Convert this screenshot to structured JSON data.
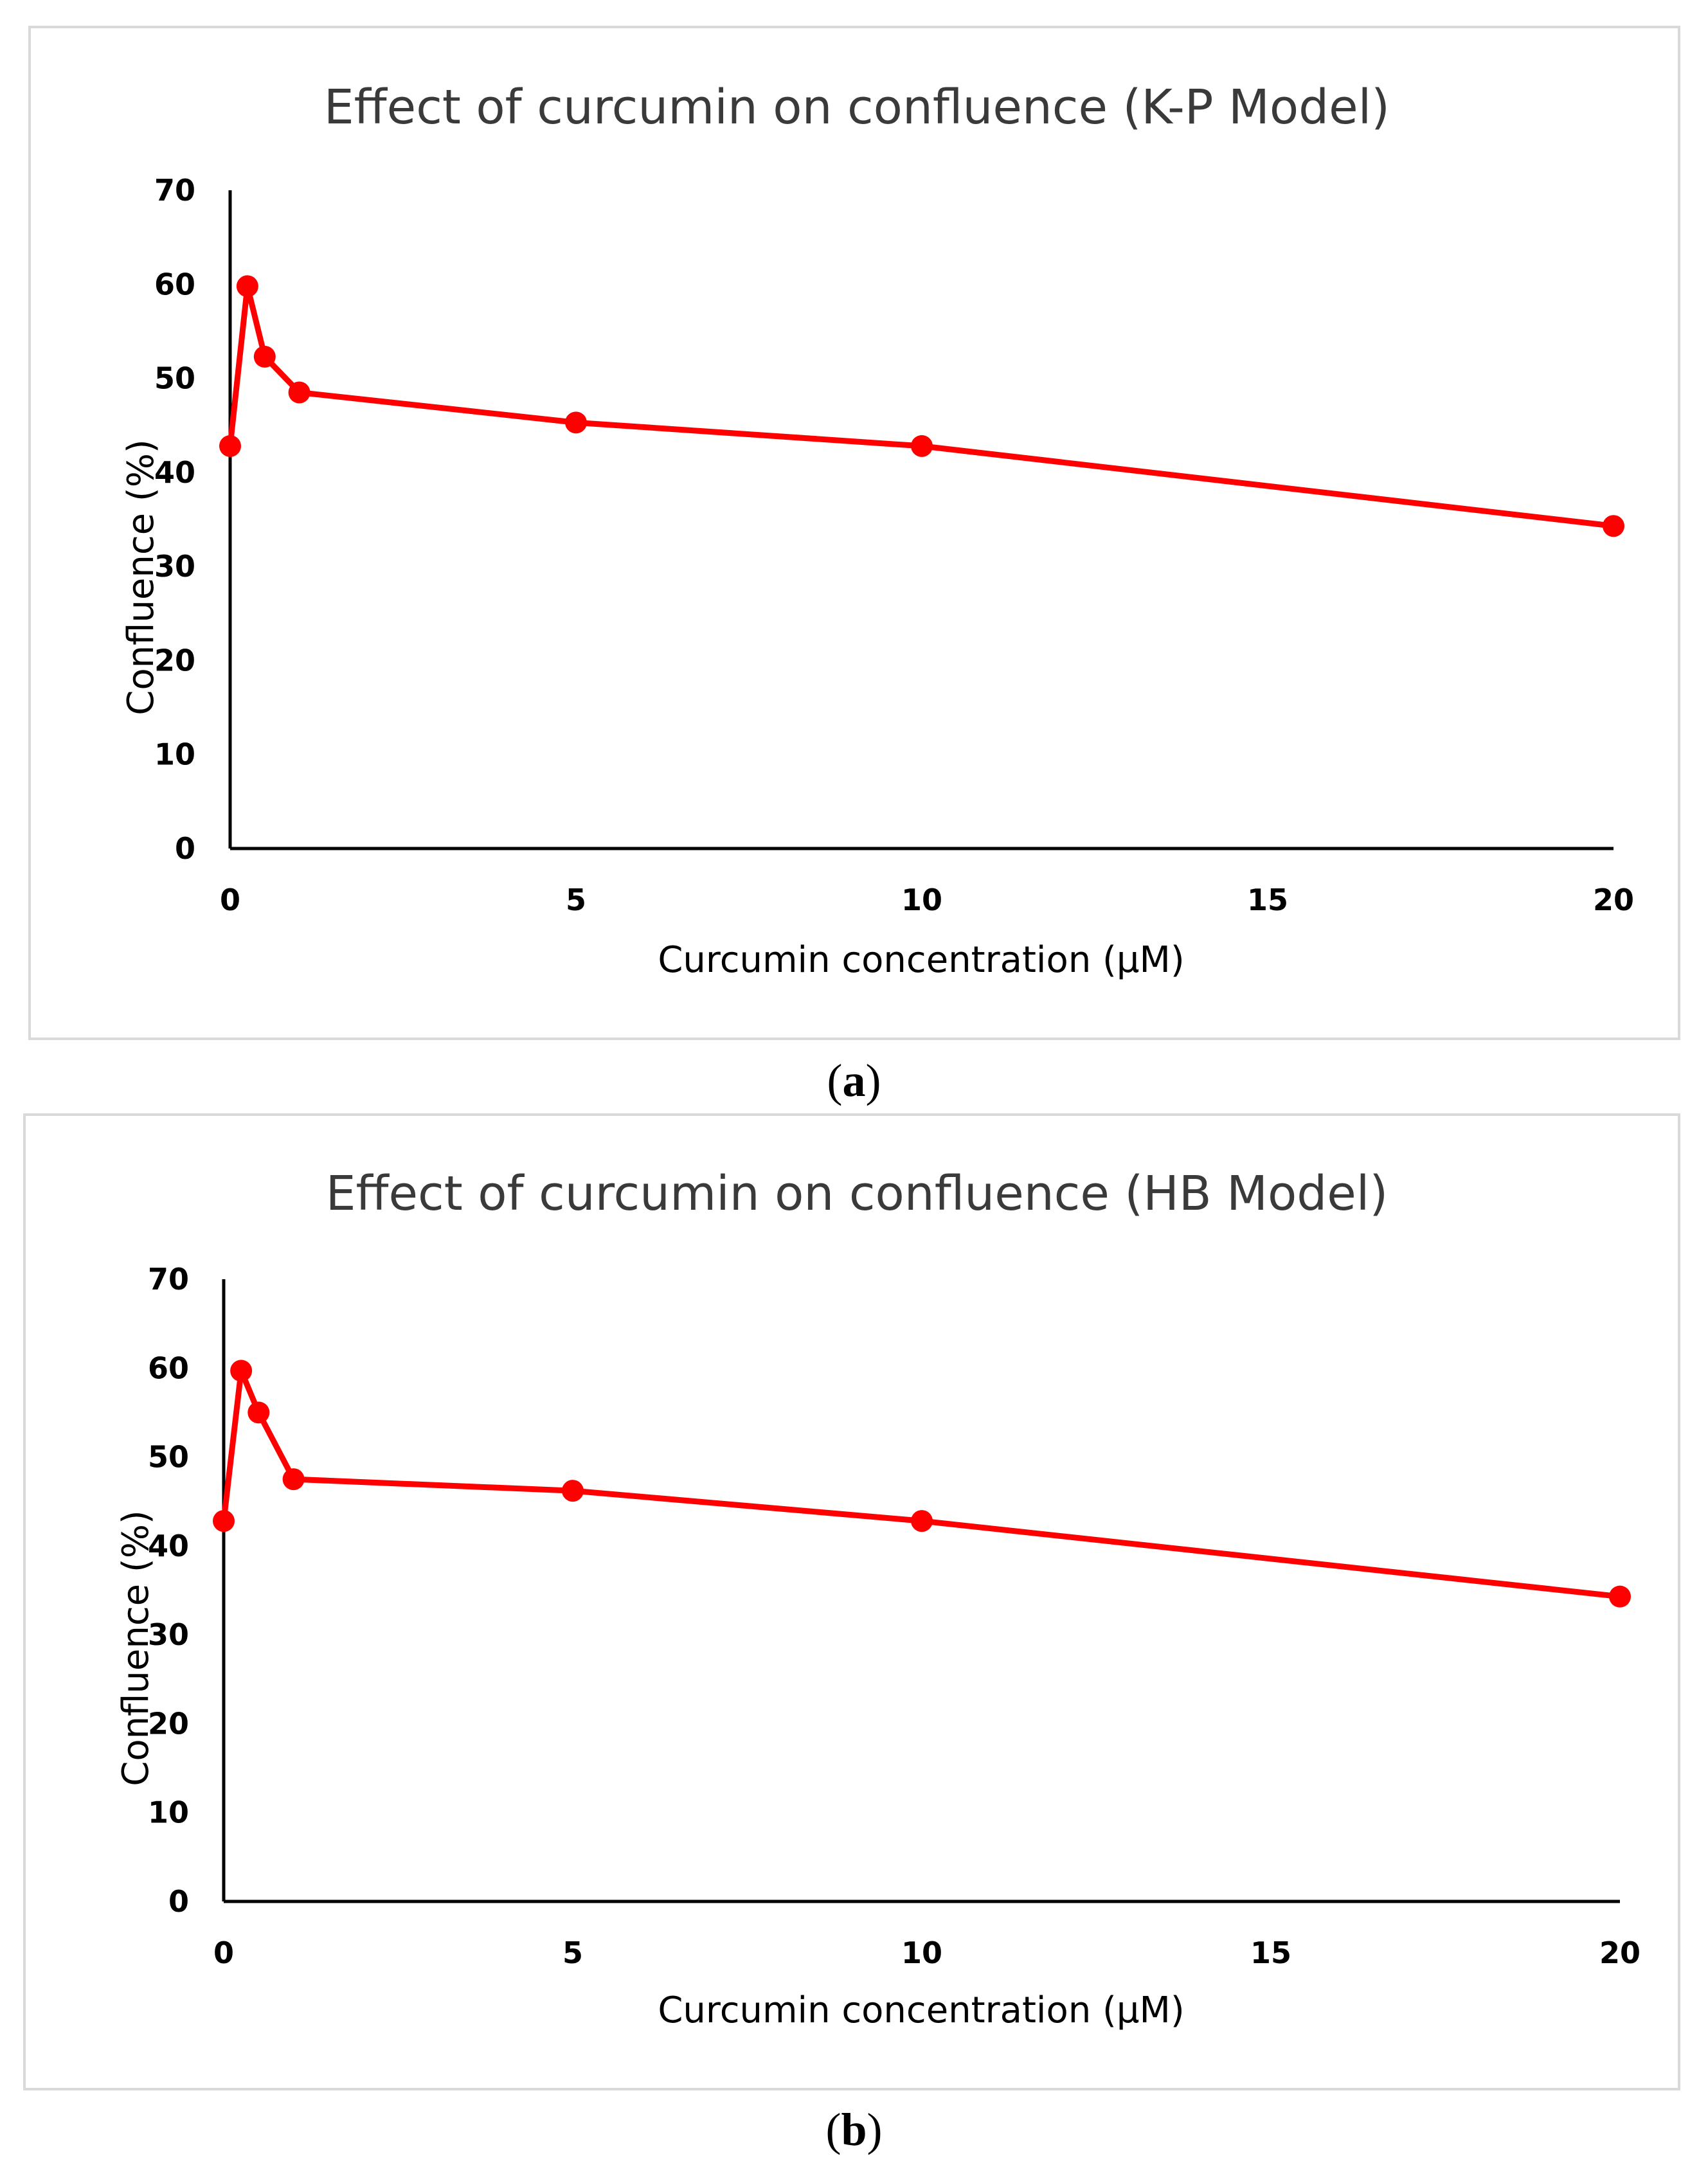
{
  "chart_data": [
    {
      "type": "line",
      "title": "Effect of curcumin on confluence (K-P Model)",
      "xlabel": "Curcumin concentration (μM)",
      "ylabel": "Confluence (%)",
      "xlim": [
        0,
        20
      ],
      "ylim": [
        0,
        70
      ],
      "xticks": [
        0,
        5,
        10,
        15,
        20
      ],
      "yticks": [
        0,
        10,
        20,
        30,
        40,
        50,
        60,
        70
      ],
      "grid": false,
      "series": [
        {
          "name": "Confluence",
          "color": "#ff0000",
          "x": [
            0,
            0.25,
            0.5,
            1,
            5,
            10,
            20
          ],
          "y": [
            42.8,
            59.8,
            52.3,
            48.5,
            45.3,
            42.8,
            34.3
          ]
        }
      ]
    },
    {
      "type": "line",
      "title": "Effect of curcumin on confluence (HB Model)",
      "xlabel": "Curcumin concentration (μM)",
      "ylabel": "Confluence (%)",
      "xlim": [
        0,
        20
      ],
      "ylim": [
        0,
        70
      ],
      "xticks": [
        0,
        5,
        10,
        15,
        20
      ],
      "yticks": [
        0,
        10,
        20,
        30,
        40,
        50,
        60,
        70
      ],
      "grid": false,
      "series": [
        {
          "name": "Confluence",
          "color": "#ff0000",
          "x": [
            0,
            0.25,
            0.5,
            1,
            5,
            10,
            20
          ],
          "y": [
            42.8,
            59.7,
            55.0,
            47.5,
            46.2,
            42.8,
            34.3
          ]
        }
      ]
    }
  ],
  "captions": [
    {
      "open": "(",
      "letter": "a",
      "close": ")"
    },
    {
      "open": "(",
      "letter": "b",
      "close": ")"
    }
  ]
}
